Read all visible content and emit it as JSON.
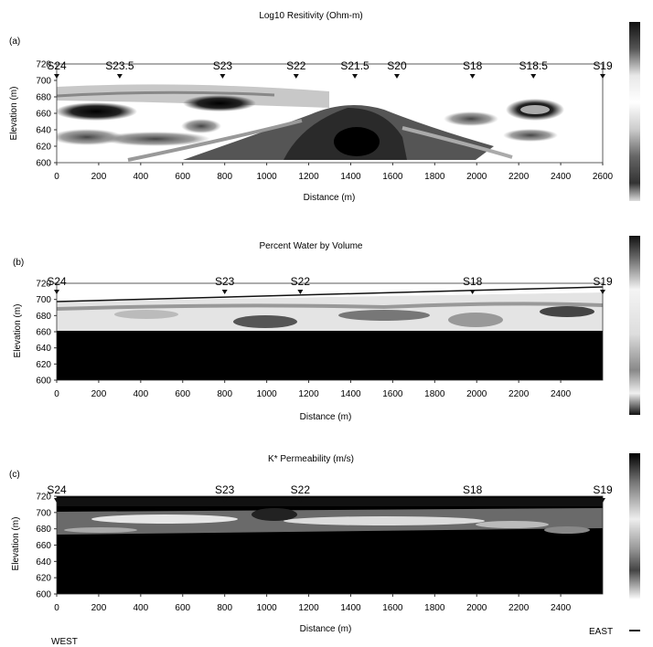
{
  "chart_data": [
    {
      "type": "heatmap",
      "panel_label": "(a)",
      "title": "Log10 Resitivity (Ohm-m)",
      "xlabel": "Distance (m)",
      "ylabel": "Elevation (m)",
      "xlim": [
        0,
        2600
      ],
      "ylim": [
        600,
        720
      ],
      "x_ticks": [
        0,
        200,
        400,
        600,
        800,
        1000,
        1200,
        1400,
        1600,
        1800,
        2000,
        2200,
        2400,
        2600
      ],
      "y_ticks": [
        600,
        620,
        640,
        660,
        680,
        700,
        720
      ],
      "stations": [
        {
          "name": "S24",
          "x": 0
        },
        {
          "name": "S23.5",
          "x": 300
        },
        {
          "name": "S23",
          "x": 790
        },
        {
          "name": "S22",
          "x": 1140
        },
        {
          "name": "S21.5",
          "x": 1420
        },
        {
          "name": "S20",
          "x": 1620
        },
        {
          "name": "S18",
          "x": 1980
        },
        {
          "name": "S18.5",
          "x": 2270
        },
        {
          "name": "S19",
          "x": 2600
        }
      ],
      "colorscale": "grayscale"
    },
    {
      "type": "heatmap",
      "panel_label": "(b)",
      "title": "Percent Water by Volume",
      "xlabel": "Distance (m)",
      "ylabel": "Elevation (m)",
      "xlim": [
        0,
        2600
      ],
      "ylim": [
        600,
        720
      ],
      "x_ticks": [
        0,
        200,
        400,
        600,
        800,
        1000,
        1200,
        1400,
        1600,
        1800,
        2000,
        2200,
        2400
      ],
      "x_tick_labels": [
        "0",
        "200",
        "400",
        "600",
        "800",
        "1000",
        "1200",
        "1400",
        "1600",
        "1800",
        "2000",
        "2200",
        "2400"
      ],
      "y_ticks": [
        600,
        620,
        640,
        660,
        680,
        700,
        720
      ],
      "stations": [
        {
          "name": "S24",
          "x": 0
        },
        {
          "name": "S23",
          "x": 800
        },
        {
          "name": "S22",
          "x": 1160
        },
        {
          "name": "S18",
          "x": 1980
        },
        {
          "name": "S19",
          "x": 2600
        }
      ],
      "colorscale": "grayscale"
    },
    {
      "type": "heatmap",
      "panel_label": "(c)",
      "title": "K* Permeability (m/s)",
      "xlabel": "Distance (m)",
      "ylabel": "Elevation (m)",
      "xlim": [
        0,
        2600
      ],
      "ylim": [
        600,
        720
      ],
      "x_ticks": [
        0,
        200,
        400,
        600,
        800,
        1000,
        1200,
        1400,
        1600,
        1800,
        2000,
        2200,
        2400
      ],
      "x_tick_labels": [
        "0",
        "200",
        "400",
        "600",
        "800",
        "1000",
        "1200",
        "1400",
        "1600",
        "1800",
        "2000",
        "2200",
        "2400"
      ],
      "y_ticks": [
        600,
        620,
        640,
        660,
        680,
        700,
        720
      ],
      "stations": [
        {
          "name": "S24",
          "x": 0
        },
        {
          "name": "S23",
          "x": 800
        },
        {
          "name": "S22",
          "x": 1160
        },
        {
          "name": "S18",
          "x": 1980
        },
        {
          "name": "S19",
          "x": 2600
        }
      ],
      "colorscale": "grayscale"
    }
  ],
  "footer": {
    "west_label": "WEST",
    "east_label": "EAST"
  }
}
